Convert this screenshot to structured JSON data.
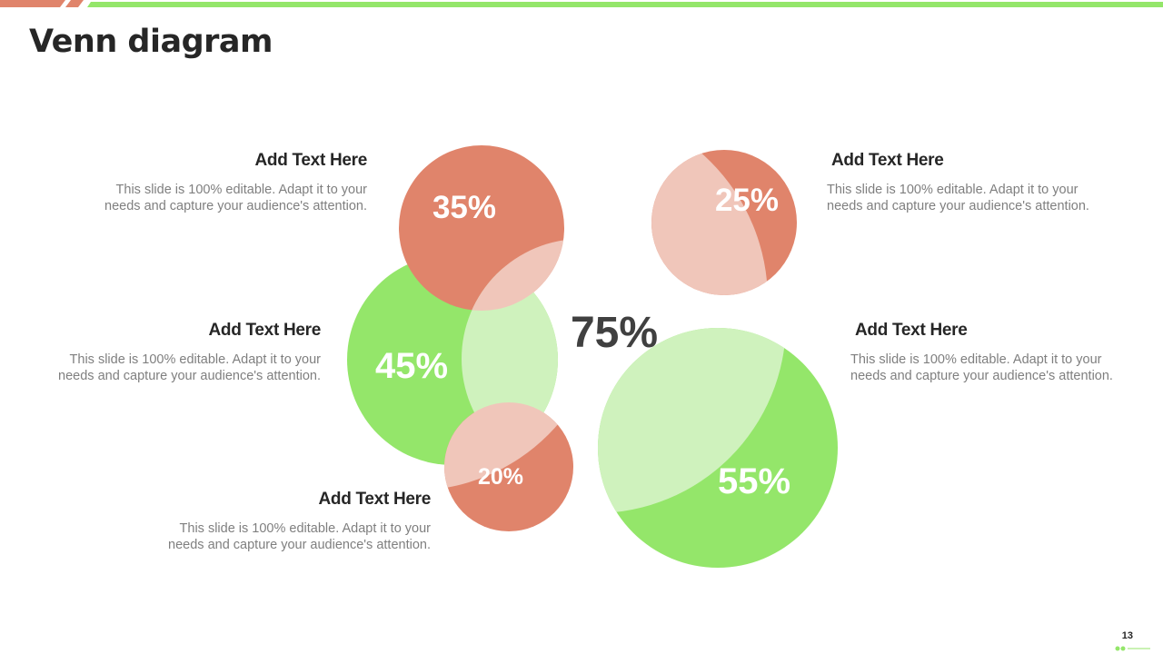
{
  "slide": {
    "title": "Venn diagram",
    "page_number": "13",
    "center_label": "75%"
  },
  "colors": {
    "coral": "#E0846B",
    "coral_light": "#F0C6BA",
    "green": "#94E66A",
    "green_light": "#CFF2BD",
    "title": "#262626",
    "body_text": "#7F7F7F"
  },
  "circles": [
    {
      "id": "top-left",
      "label": "35%",
      "color": "coral"
    },
    {
      "id": "mid-left",
      "label": "45%",
      "color": "green"
    },
    {
      "id": "bottom-small",
      "label": "20%",
      "color": "coral"
    },
    {
      "id": "top-right",
      "label": "25%",
      "color": "coral"
    },
    {
      "id": "bottom-right",
      "label": "55%",
      "color": "green"
    }
  ],
  "text_blocks": [
    {
      "heading": "Add Text Here",
      "body_line1": "This slide is 100% editable. Adapt it to your",
      "body_line2": "needs and capture your audience's attention."
    },
    {
      "heading": "Add Text Here",
      "body_line1": "This slide is 100% editable. Adapt it to your",
      "body_line2": "needs and capture your audience's attention."
    },
    {
      "heading": "Add Text Here",
      "body_line1": "This slide is 100% editable. Adapt it to your",
      "body_line2": "needs and capture your audience's attention."
    },
    {
      "heading": "Add Text Here",
      "body_line1": "This slide is 100% editable. Adapt it to your",
      "body_line2": "needs and capture your audience's attention."
    },
    {
      "heading": "Add Text Here",
      "body_line1": "This slide is 100% editable. Adapt it to your",
      "body_line2": "needs and capture your audience's attention."
    }
  ]
}
